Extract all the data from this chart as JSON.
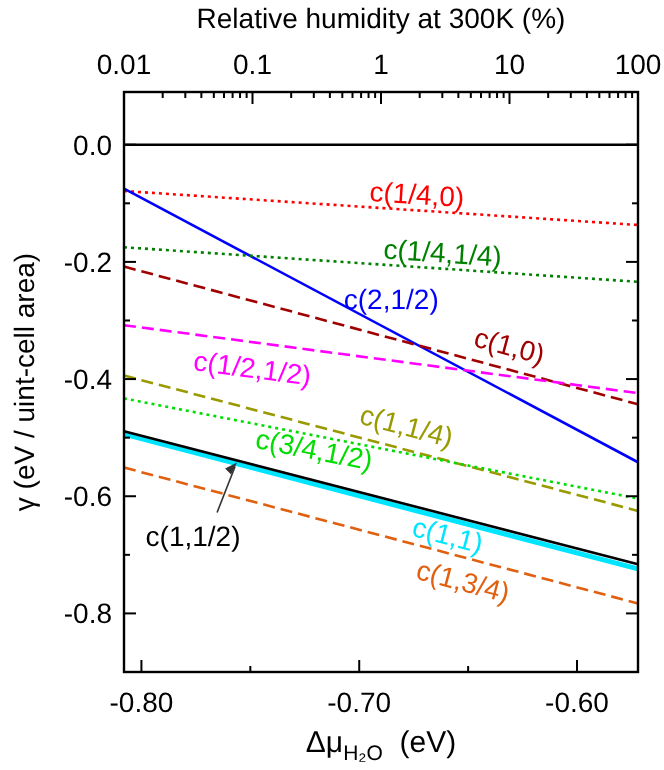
{
  "chart_data": {
    "type": "line",
    "xlabel": "Δμ$_{H₂O}$ (eV)",
    "ylabel": "γ (eV / uint-cell area)",
    "x2label": "Relative humidity at 300K (%)",
    "xlim": [
      -0.808,
      -0.572
    ],
    "ylim": [
      -0.9,
      0.09
    ],
    "xticks": [
      {
        "value": -0.8,
        "label": "-0.80"
      },
      {
        "value": -0.75,
        "label": null
      },
      {
        "value": -0.7,
        "label": "-0.70"
      },
      {
        "value": -0.65,
        "label": null
      },
      {
        "value": -0.6,
        "label": "-0.60"
      }
    ],
    "yticks": [
      {
        "value": -0.8,
        "label": "-0.8"
      },
      {
        "value": -0.7,
        "label": null
      },
      {
        "value": -0.6,
        "label": "-0.6"
      },
      {
        "value": -0.5,
        "label": null
      },
      {
        "value": -0.4,
        "label": "-0.4"
      },
      {
        "value": -0.3,
        "label": null
      },
      {
        "value": -0.2,
        "label": "-0.2"
      },
      {
        "value": -0.1,
        "label": null
      },
      {
        "value": 0,
        "label": "0.0"
      }
    ],
    "x2lim": [
      0.01,
      100
    ],
    "log": "x2",
    "x2ticks": [
      0.01,
      {
        "value": 0.02,
        "label": null
      },
      {
        "value": 0.03,
        "label": null
      },
      {
        "value": 0.04,
        "label": null
      },
      {
        "value": 0.05,
        "label": null
      },
      {
        "value": 0.06,
        "label": null
      },
      {
        "value": 0.07,
        "label": null
      },
      {
        "value": 0.08,
        "label": null
      },
      {
        "value": 0.09,
        "label": null
      },
      0.1,
      {
        "value": 0.2,
        "label": null
      },
      {
        "value": 0.3,
        "label": null
      },
      {
        "value": 0.4,
        "label": null
      },
      {
        "value": 0.5,
        "label": null
      },
      {
        "value": 0.6,
        "label": null
      },
      {
        "value": 0.7,
        "label": null
      },
      {
        "value": 0.8,
        "label": null
      },
      {
        "value": 0.9,
        "label": null
      },
      1,
      {
        "value": 2,
        "label": null
      },
      {
        "value": 3,
        "label": null
      },
      {
        "value": 4,
        "label": null
      },
      {
        "value": 5,
        "label": null
      },
      {
        "value": 6,
        "label": null
      },
      {
        "value": 7,
        "label": null
      },
      {
        "value": 8,
        "label": null
      },
      {
        "value": 9,
        "label": null
      },
      10,
      {
        "value": 20,
        "label": null
      },
      {
        "value": 30,
        "label": null
      },
      {
        "value": 40,
        "label": null
      },
      {
        "value": 50,
        "label": null
      },
      {
        "value": 60,
        "label": null
      },
      {
        "value": 70,
        "label": null
      },
      {
        "value": 80,
        "label": null
      },
      {
        "value": 90,
        "label": null
      },
      100
    ],
    "ref_lines": [
      {
        "axis": "y",
        "value": 0,
        "color": "#000000",
        "line_style": "solid"
      }
    ],
    "grid": false,
    "legend": false,
    "x": [
      -0.808,
      -0.572
    ],
    "series": [
      {
        "name": "c(1/4,0)",
        "color": "#ff0000",
        "line_style": "dotted",
        "values": [
          -0.079,
          -0.137
        ]
      },
      {
        "name": "c(2,1/2)",
        "color": "#0000ff",
        "line_style": "solid",
        "values": [
          -0.075,
          -0.542
        ]
      },
      {
        "name": "c(1/4,1/4)",
        "color": "#008000",
        "line_style": "dotted",
        "values": [
          -0.175,
          -0.234
        ]
      },
      {
        "name": "c(1,0)",
        "color": "#a00000",
        "line_style": "dashed",
        "values": [
          -0.208,
          -0.443
        ]
      },
      {
        "name": "c(1/2,1/2)",
        "color": "#ff00ff",
        "line_style": "dashed",
        "values": [
          -0.308,
          -0.424
        ]
      },
      {
        "name": "c(1,1/4)",
        "color": "#999900",
        "line_style": "dashed",
        "values": [
          -0.394,
          -0.625
        ]
      },
      {
        "name": "c(3/4,1/2)",
        "color": "#00dd00",
        "line_style": "dotted",
        "values": [
          -0.433,
          -0.604
        ]
      },
      {
        "name": "c(1,1)",
        "color": "#00e5ff",
        "line_style": "solid",
        "values": [
          -0.494,
          -0.724
        ]
      },
      {
        "name": "c(1,1/2)",
        "color": "#000000",
        "line_style": "solid",
        "values": [
          -0.489,
          -0.716
        ]
      },
      {
        "name": "c(1,3/4)",
        "color": "#e06010",
        "line_style": "dashed",
        "values": [
          -0.551,
          -0.783
        ]
      }
    ]
  }
}
